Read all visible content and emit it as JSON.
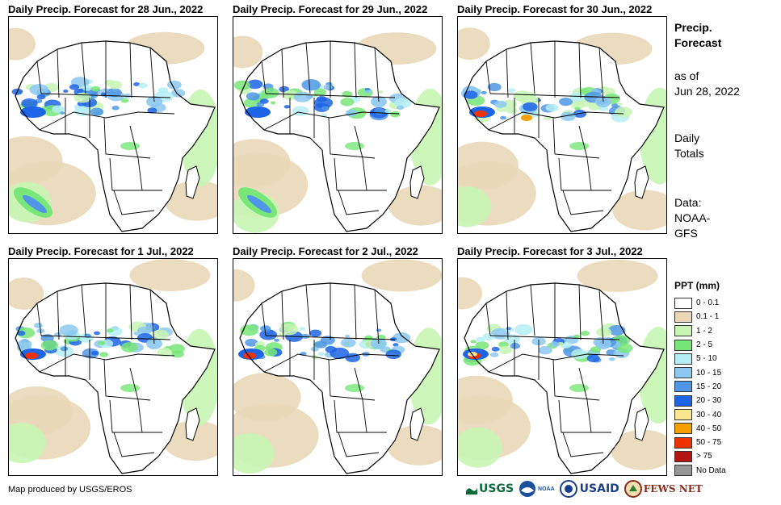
{
  "panels": [
    {
      "title": "Daily Precip. Forecast for 28 Jun., 2022"
    },
    {
      "title": "Daily Precip. Forecast for 29 Jun., 2022"
    },
    {
      "title": "Daily Precip. Forecast for 30 Jun., 2022"
    },
    {
      "title": "Daily Precip. Forecast for 1 Jul., 2022"
    },
    {
      "title": "Daily Precip. Forecast for 2 Jul., 2022"
    },
    {
      "title": "Daily Precip. Forecast for 3 Jul., 2022"
    }
  ],
  "side": {
    "title_line1": "Precip.",
    "title_line2": "Forecast",
    "asof_line1": "as of",
    "asof_line2": "Jun 28, 2022",
    "totals_line1": "Daily",
    "totals_line2": "Totals",
    "data_line1": "Data:",
    "data_line2": "NOAA-",
    "data_line3": "GFS"
  },
  "legend": {
    "title": "PPT (mm)",
    "items": [
      {
        "label": "0 - 0.1",
        "color": "#ffffff"
      },
      {
        "label": "0.1 - 1",
        "color": "#ead8b8"
      },
      {
        "label": "1 - 2",
        "color": "#c8f5b4"
      },
      {
        "label": "2 - 5",
        "color": "#78e678"
      },
      {
        "label": "5 - 10",
        "color": "#b4eef4"
      },
      {
        "label": "10 - 15",
        "color": "#8cc8f0"
      },
      {
        "label": "15 - 20",
        "color": "#5096e6"
      },
      {
        "label": "20 - 30",
        "color": "#1e64e6"
      },
      {
        "label": "30 - 40",
        "color": "#fae68c"
      },
      {
        "label": "40 - 50",
        "color": "#f5a000"
      },
      {
        "label": "50 - 75",
        "color": "#f03200"
      },
      {
        "label": "> 75",
        "color": "#b41414"
      },
      {
        "label": "No Data",
        "color": "#969696"
      }
    ]
  },
  "credit": "Map produced by USGS/EROS",
  "logos": {
    "usgs": "USGS",
    "noaa": "NOAA",
    "usaid": "USAID",
    "fewsnet": "FEWS NET"
  }
}
